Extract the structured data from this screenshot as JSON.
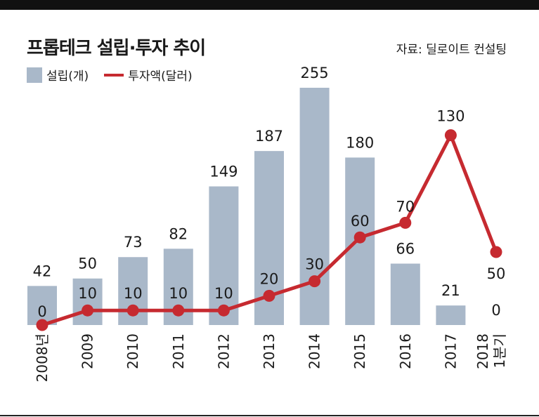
{
  "title": "프롭테크 설립·투자 추이",
  "source": "자료: 딜로이트 컨설팅",
  "colors": {
    "bar": "#a9b8c9",
    "line": "#c62a30"
  },
  "chart_data": {
    "type": "bar",
    "title": "프롭테크 설립·투자 추이",
    "categories": [
      "2008년",
      "2009",
      "2010",
      "2011",
      "2012",
      "2013",
      "2014",
      "2015",
      "2016",
      "2017",
      "2018 1분기"
    ],
    "tick_lines": [
      [
        "2008년"
      ],
      [
        "2009"
      ],
      [
        "2010"
      ],
      [
        "2011"
      ],
      [
        "2012"
      ],
      [
        "2013"
      ],
      [
        "2014"
      ],
      [
        "2015"
      ],
      [
        "2016"
      ],
      [
        "2017"
      ],
      [
        "2018",
        "1분기"
      ]
    ],
    "series": [
      {
        "name": "설립(개)",
        "type": "bar",
        "values": [
          42,
          50,
          73,
          82,
          149,
          187,
          255,
          180,
          66,
          21,
          0
        ]
      },
      {
        "name": "투자액(달러)",
        "type": "line",
        "values": [
          0,
          10,
          10,
          10,
          10,
          20,
          30,
          60,
          70,
          130,
          50
        ]
      }
    ],
    "legend": [
      "설립(개)",
      "투자액(달러)"
    ],
    "legend_position": "top-left",
    "grid": false
  }
}
